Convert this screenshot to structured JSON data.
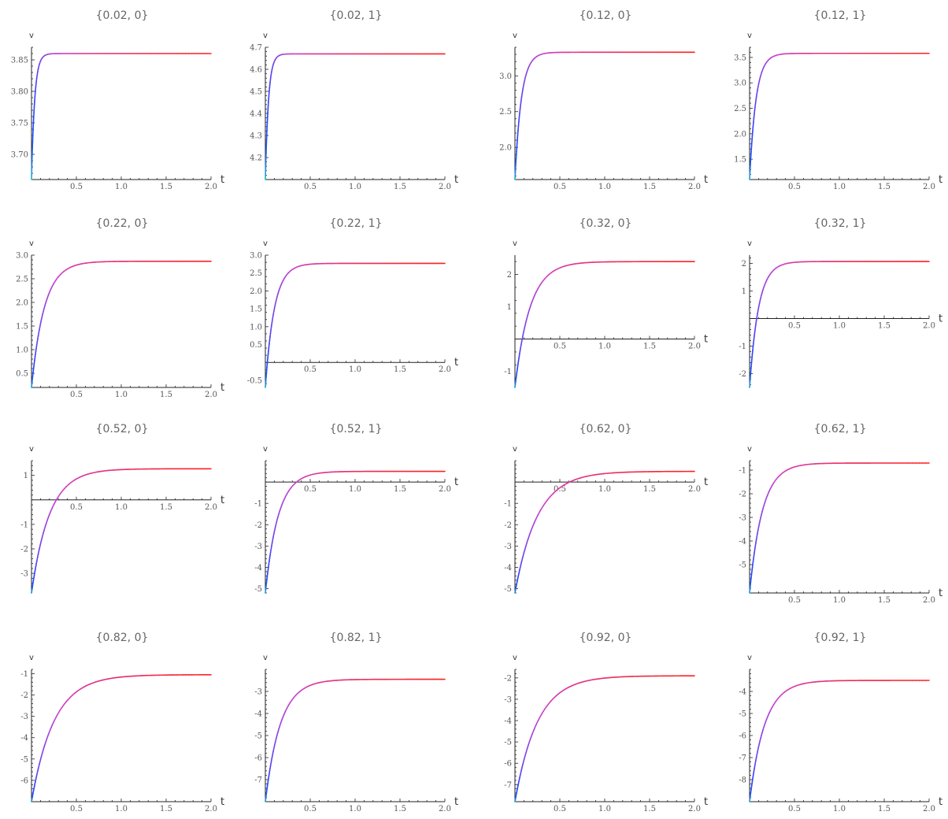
{
  "chart_data": [
    {
      "type": "line",
      "title": "{0.02, 0}",
      "xlabel": "t",
      "ylabel": "v",
      "xlim": [
        0,
        2
      ],
      "ylim": [
        3.66,
        3.87
      ],
      "xticks": [
        0.5,
        1.0,
        1.5,
        2.0
      ],
      "xtick_labels": [
        "0.5",
        "1.0",
        "1.5",
        "2.0"
      ],
      "yticks": [
        3.7,
        3.75,
        3.8,
        3.85
      ],
      "ytick_labels": [
        "3.70",
        "3.75",
        "3.80",
        "3.85"
      ],
      "series": [
        {
          "v0": 3.66,
          "vinf": 3.86,
          "rate": 28
        }
      ]
    },
    {
      "type": "line",
      "title": "{0.02, 1}",
      "xlabel": "t",
      "ylabel": "v",
      "xlim": [
        0,
        2
      ],
      "ylim": [
        4.1,
        4.7
      ],
      "xticks": [
        0.5,
        1.0,
        1.5,
        2.0
      ],
      "xtick_labels": [
        "0.5",
        "1.0",
        "1.5",
        "2.0"
      ],
      "yticks": [
        4.2,
        4.3,
        4.4,
        4.5,
        4.6,
        4.7
      ],
      "ytick_labels": [
        "4.2",
        "4.3",
        "4.4",
        "4.5",
        "4.6",
        "4.7"
      ],
      "series": [
        {
          "v0": 4.1,
          "vinf": 4.67,
          "rate": 28
        }
      ]
    },
    {
      "type": "line",
      "title": "{0.12, 0}",
      "xlabel": "t",
      "ylabel": "v",
      "xlim": [
        0,
        2
      ],
      "ylim": [
        1.55,
        3.4
      ],
      "xticks": [
        0.5,
        1.0,
        1.5,
        2.0
      ],
      "xtick_labels": [
        "0.5",
        "1.0",
        "1.5",
        "2.0"
      ],
      "yticks": [
        2.0,
        2.5,
        3.0
      ],
      "ytick_labels": [
        "2.0",
        "2.5",
        "3.0"
      ],
      "series": [
        {
          "v0": 1.55,
          "vinf": 3.33,
          "rate": 14
        }
      ]
    },
    {
      "type": "line",
      "title": "{0.12, 1}",
      "xlabel": "t",
      "ylabel": "v",
      "xlim": [
        0,
        2
      ],
      "ylim": [
        1.1,
        3.7
      ],
      "xticks": [
        0.5,
        1.0,
        1.5,
        2.0
      ],
      "xtick_labels": [
        "0.5",
        "1.0",
        "1.5",
        "2.0"
      ],
      "yticks": [
        1.5,
        2.0,
        2.5,
        3.0,
        3.5
      ],
      "ytick_labels": [
        "1.5",
        "2.0",
        "2.5",
        "3.0",
        "3.5"
      ],
      "series": [
        {
          "v0": 1.1,
          "vinf": 3.58,
          "rate": 14
        }
      ]
    },
    {
      "type": "line",
      "title": "{0.22, 0}",
      "xlabel": "t",
      "ylabel": "v",
      "xlim": [
        0,
        2
      ],
      "ylim": [
        0.2,
        3.0
      ],
      "xticks": [
        0.5,
        1.0,
        1.5,
        2.0
      ],
      "xtick_labels": [
        "0.5",
        "1.0",
        "1.5",
        "2.0"
      ],
      "yticks": [
        0.5,
        1.0,
        1.5,
        2.0,
        2.5,
        3.0
      ],
      "ytick_labels": [
        "0.5",
        "1.0",
        "1.5",
        "2.0",
        "2.5",
        "3.0"
      ],
      "series": [
        {
          "v0": 0.2,
          "vinf": 2.87,
          "rate": 7
        }
      ]
    },
    {
      "type": "line",
      "title": "{0.22, 1}",
      "xlabel": "t",
      "ylabel": "v",
      "xlim": [
        0,
        2
      ],
      "ylim": [
        -0.7,
        3.0
      ],
      "xticks": [
        0.5,
        1.0,
        1.5,
        2.0
      ],
      "xtick_labels": [
        "0.5",
        "1.0",
        "1.5",
        "2.0"
      ],
      "yticks": [
        -0.5,
        0.5,
        1.0,
        1.5,
        2.0,
        2.5,
        3.0
      ],
      "ytick_labels": [
        "-0.5",
        "0.5",
        "1.0",
        "1.5",
        "2.0",
        "2.5",
        "3.0"
      ],
      "series": [
        {
          "v0": -0.7,
          "vinf": 2.77,
          "rate": 10
        }
      ]
    },
    {
      "type": "line",
      "title": "{0.32, 0}",
      "xlabel": "t",
      "ylabel": "v",
      "xlim": [
        0,
        2
      ],
      "ylim": [
        -1.5,
        2.6
      ],
      "xticks": [
        0.5,
        1.0,
        1.5,
        2.0
      ],
      "xtick_labels": [
        "0.5",
        "1.0",
        "1.5",
        "2.0"
      ],
      "yticks": [
        -1,
        1,
        2
      ],
      "ytick_labels": [
        "-1",
        "1",
        "2"
      ],
      "series": [
        {
          "v0": -1.5,
          "vinf": 2.4,
          "rate": 6
        }
      ]
    },
    {
      "type": "line",
      "title": "{0.32, 1}",
      "xlabel": "t",
      "ylabel": "v",
      "xlim": [
        0,
        2
      ],
      "ylim": [
        -2.5,
        2.3
      ],
      "xticks": [
        0.5,
        1.0,
        1.5,
        2.0
      ],
      "xtick_labels": [
        "0.5",
        "1.0",
        "1.5",
        "2.0"
      ],
      "yticks": [
        -2,
        -1,
        1,
        2
      ],
      "ytick_labels": [
        "-2",
        "-1",
        "1",
        "2"
      ],
      "series": [
        {
          "v0": -2.5,
          "vinf": 2.07,
          "rate": 10
        }
      ]
    },
    {
      "type": "line",
      "title": "{0.52, 0}",
      "xlabel": "t",
      "ylabel": "v",
      "xlim": [
        0,
        2
      ],
      "ylim": [
        -3.8,
        1.6
      ],
      "xticks": [
        0.5,
        1.0,
        1.5,
        2.0
      ],
      "xtick_labels": [
        "0.5",
        "1.0",
        "1.5",
        "2.0"
      ],
      "yticks": [
        -3,
        -2,
        -1,
        1
      ],
      "ytick_labels": [
        "-3",
        "-2",
        "-1",
        "1"
      ],
      "series": [
        {
          "v0": -3.8,
          "vinf": 1.27,
          "rate": 5
        }
      ]
    },
    {
      "type": "line",
      "title": "{0.52, 1}",
      "xlabel": "t",
      "ylabel": "v",
      "xlim": [
        0,
        2
      ],
      "ylim": [
        -5.2,
        1.0
      ],
      "xticks": [
        0.5,
        1.0,
        1.5,
        2.0
      ],
      "xtick_labels": [
        "0.5",
        "1.0",
        "1.5",
        "2.0"
      ],
      "yticks": [
        -5,
        -4,
        -3,
        -2,
        -1
      ],
      "ytick_labels": [
        "-5",
        "-4",
        "-3",
        "-2",
        "-1"
      ],
      "series": [
        {
          "v0": -5.2,
          "vinf": 0.5,
          "rate": 7
        }
      ]
    },
    {
      "type": "line",
      "title": "{0.62, 0}",
      "xlabel": "t",
      "ylabel": "v",
      "xlim": [
        0,
        2
      ],
      "ylim": [
        -5.2,
        1.0
      ],
      "xticks": [
        0.5,
        1.0,
        1.5,
        2.0
      ],
      "xtick_labels": [
        "0.5",
        "1.0",
        "1.5",
        "2.0"
      ],
      "yticks": [
        -5,
        -4,
        -3,
        -2,
        -1
      ],
      "ytick_labels": [
        "-5",
        "-4",
        "-3",
        "-2",
        "-1"
      ],
      "series": [
        {
          "v0": -5.2,
          "vinf": 0.5,
          "rate": 4
        }
      ]
    },
    {
      "type": "line",
      "title": "{0.62, 1}",
      "xlabel": "t",
      "ylabel": "v",
      "xlim": [
        0,
        2
      ],
      "ylim": [
        -6.2,
        -0.6
      ],
      "xticks": [
        0.5,
        1.0,
        1.5,
        2.0
      ],
      "xtick_labels": [
        "0.5",
        "1.0",
        "1.5",
        "2.0"
      ],
      "yticks": [
        -5,
        -4,
        -3,
        -2,
        -1
      ],
      "ytick_labels": [
        "-5",
        "-4",
        "-3",
        "-2",
        "-1"
      ],
      "series": [
        {
          "v0": -6.2,
          "vinf": -0.7,
          "rate": 7
        }
      ]
    },
    {
      "type": "line",
      "title": "{0.82, 0}",
      "xlabel": "t",
      "ylabel": "v",
      "xlim": [
        0,
        2
      ],
      "ylim": [
        -7.0,
        -0.8
      ],
      "xticks": [
        0.5,
        1.0,
        1.5,
        2.0
      ],
      "xtick_labels": [
        "0.5",
        "1.0",
        "1.5",
        "2.0"
      ],
      "yticks": [
        -6,
        -5,
        -4,
        -3,
        -2,
        -1
      ],
      "ytick_labels": [
        "-6",
        "-5",
        "-4",
        "-3",
        "-2",
        "-1"
      ],
      "series": [
        {
          "v0": -7.0,
          "vinf": -1.05,
          "rate": 4
        }
      ]
    },
    {
      "type": "line",
      "title": "{0.82, 1}",
      "xlabel": "t",
      "ylabel": "v",
      "xlim": [
        0,
        2
      ],
      "ylim": [
        -8.0,
        -2.0
      ],
      "xticks": [
        0.5,
        1.0,
        1.5,
        2.0
      ],
      "xtick_labels": [
        "0.5",
        "1.0",
        "1.5",
        "2.0"
      ],
      "yticks": [
        -7,
        -6,
        -5,
        -4,
        -3
      ],
      "ytick_labels": [
        "-7",
        "-6",
        "-5",
        "-4",
        "-3"
      ],
      "series": [
        {
          "v0": -8.0,
          "vinf": -2.45,
          "rate": 6
        }
      ]
    },
    {
      "type": "line",
      "title": "{0.92, 0}",
      "xlabel": "t",
      "ylabel": "v",
      "xlim": [
        0,
        2
      ],
      "ylim": [
        -7.8,
        -1.6
      ],
      "xticks": [
        0.5,
        1.0,
        1.5,
        2.0
      ],
      "xtick_labels": [
        "0.5",
        "1.0",
        "1.5",
        "2.0"
      ],
      "yticks": [
        -7,
        -6,
        -5,
        -4,
        -3,
        -2
      ],
      "ytick_labels": [
        "-7",
        "-6",
        "-5",
        "-4",
        "-3",
        "-2"
      ],
      "series": [
        {
          "v0": -7.8,
          "vinf": -1.9,
          "rate": 4
        }
      ]
    },
    {
      "type": "line",
      "title": "{0.92, 1}",
      "xlabel": "t",
      "ylabel": "v",
      "xlim": [
        0,
        2
      ],
      "ylim": [
        -9.0,
        -3.0
      ],
      "xticks": [
        0.5,
        1.0,
        1.5,
        2.0
      ],
      "xtick_labels": [
        "0.5",
        "1.0",
        "1.5",
        "2.0"
      ],
      "yticks": [
        -8,
        -7,
        -6,
        -5,
        -4
      ],
      "ytick_labels": [
        "-8",
        "-7",
        "-6",
        "-5",
        "-4"
      ],
      "series": [
        {
          "v0": -9.0,
          "vinf": -3.5,
          "rate": 6
        }
      ]
    }
  ],
  "colors": {
    "axis": "#222222",
    "curve_gradient": [
      "#22aa22",
      "#22cccc",
      "#2244ff",
      "#cc44cc",
      "#ff2222"
    ],
    "title": "#666666",
    "axis_name": "#999999"
  }
}
